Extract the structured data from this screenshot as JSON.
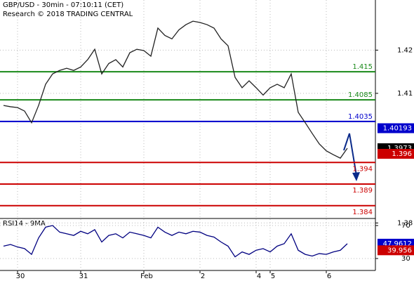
{
  "chart_data": {
    "type": "line",
    "title": "GBP/USD - 30min - 07:10:11 (CET)",
    "subtitle": "Research © 2018 TRADING CENTRAL",
    "categories": [
      null,
      null,
      "30",
      null,
      null,
      null,
      null,
      null,
      null,
      null,
      null,
      "31",
      null,
      null,
      null,
      null,
      null,
      null,
      null,
      null,
      "Feb",
      null,
      null,
      null,
      null,
      null,
      null,
      null,
      "2",
      null,
      null,
      null,
      null,
      null,
      null,
      null,
      "4",
      null,
      "5",
      null,
      null,
      null,
      null,
      null,
      null,
      null,
      "6",
      null,
      null,
      null
    ],
    "series": [
      {
        "name": "GBP/USD",
        "color": "#222222",
        "values": [
          1.4072,
          1.4069,
          1.4067,
          1.4059,
          1.4032,
          1.4072,
          1.4121,
          1.4145,
          1.4153,
          1.4158,
          1.4153,
          1.4161,
          1.4178,
          1.4202,
          1.4145,
          1.4169,
          1.4178,
          1.4161,
          1.4194,
          1.4202,
          1.4199,
          1.4186,
          1.4251,
          1.4234,
          1.4226,
          1.4247,
          1.4259,
          1.4267,
          1.4264,
          1.4259,
          1.4251,
          1.4226,
          1.421,
          1.4137,
          1.4113,
          1.4129,
          1.4113,
          1.4096,
          1.4113,
          1.4121,
          1.4113,
          1.4145,
          1.4056,
          1.4032,
          1.4007,
          1.3983,
          1.3967,
          1.3958,
          1.395,
          1.3973
        ]
      }
    ],
    "ylim": [
      1.3812,
      1.4316
    ],
    "yticks": [
      1.38,
      1.41,
      1.42
    ],
    "grid": true,
    "levels": [
      {
        "value": 1.415,
        "color": "#1a8a1a"
      },
      {
        "value": 1.4085,
        "color": "#1a8a1a"
      },
      {
        "value": 1.4035,
        "color": "#0000cc"
      },
      {
        "value": 1.394,
        "color": "#cc0000"
      },
      {
        "value": 1.389,
        "color": "#cc0000"
      },
      {
        "value": 1.384,
        "color": "#cc0000"
      }
    ],
    "markers": [
      {
        "value": 1.40193,
        "color": "#0000cc"
      },
      {
        "value": 1.3973,
        "color": "#000000"
      },
      {
        "value": 1.396,
        "color": "#cc0000"
      }
    ],
    "rsi": {
      "title": "RSI14 - 9MA",
      "color": "#000080",
      "values": [
        45,
        47,
        44,
        42,
        35,
        55,
        68,
        70,
        62,
        60,
        58,
        63,
        60,
        65,
        50,
        58,
        60,
        55,
        62,
        60,
        58,
        55,
        68,
        62,
        58,
        62,
        60,
        63,
        62,
        58,
        56,
        50,
        45,
        32,
        38,
        35,
        40,
        42,
        38,
        45,
        48,
        60,
        40,
        35,
        33,
        36,
        35,
        38,
        40,
        47.9612
      ],
      "ylim": [
        15.5,
        77.7
      ],
      "yticks": [
        30,
        70
      ],
      "markers": [
        {
          "value": 47.9612,
          "color": "#0000cc"
        },
        {
          "value": 39.956,
          "color": "#cc0000"
        }
      ]
    }
  }
}
